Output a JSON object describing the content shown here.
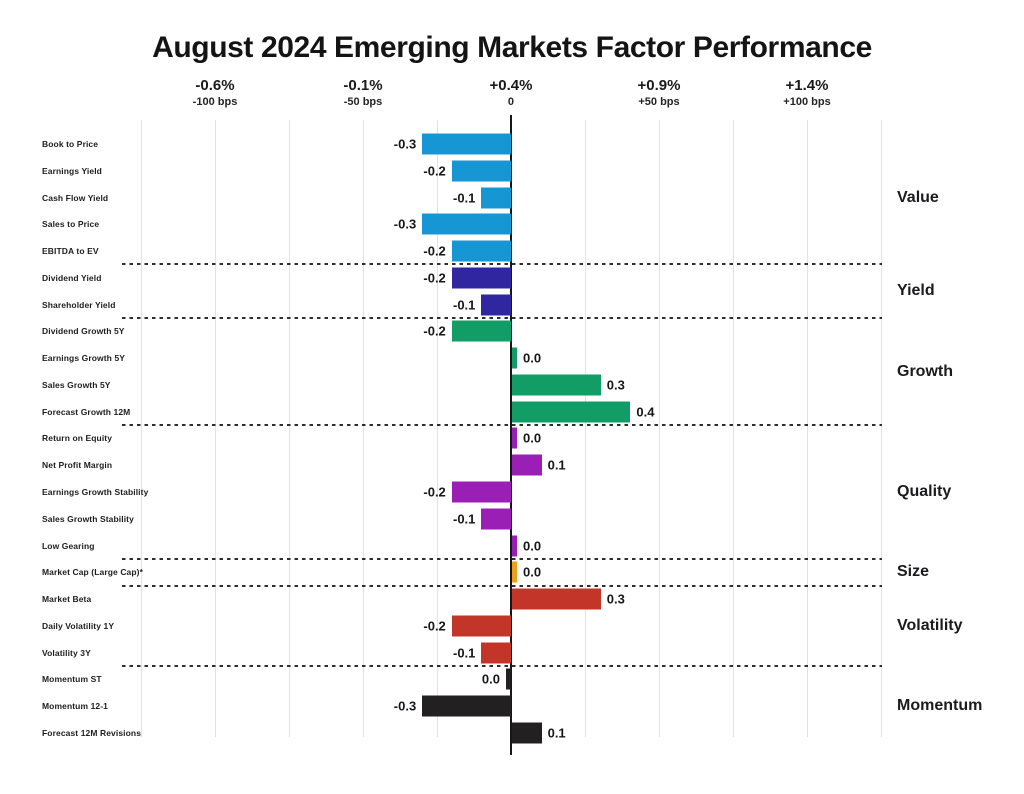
{
  "title": "August 2024 Emerging Markets Factor Performance",
  "chart_data": {
    "type": "bar",
    "orientation": "horizontal",
    "title": "August 2024 Emerging Markets Factor Performance",
    "unit": "percent (100 bps = 1%)",
    "x_axis": {
      "zero_line_at_pct_label": "+0.4%",
      "gridlines": "light vertical every 25 bps",
      "ticks": [
        {
          "pct": "-0.6%",
          "bps": "-100 bps"
        },
        {
          "pct": "-0.1%",
          "bps": "-50 bps"
        },
        {
          "pct": "+0.4%",
          "bps": "0"
        },
        {
          "pct": "+0.9%",
          "bps": "+50 bps"
        },
        {
          "pct": "+1.4%",
          "bps": "+100 bps"
        }
      ]
    },
    "groups": [
      {
        "name": "Value",
        "color": "#1697D4",
        "items": [
          {
            "label": "Book to Price",
            "value": -0.3,
            "display": "-0.3"
          },
          {
            "label": "Earnings Yield",
            "value": -0.2,
            "display": "-0.2"
          },
          {
            "label": "Cash Flow Yield",
            "value": -0.1,
            "display": "-0.1"
          },
          {
            "label": "Sales to Price",
            "value": -0.3,
            "display": "-0.3"
          },
          {
            "label": "EBITDA to EV",
            "value": -0.2,
            "display": "-0.2"
          }
        ]
      },
      {
        "name": "Yield",
        "color": "#2F26A0",
        "items": [
          {
            "label": "Dividend Yield",
            "value": -0.2,
            "display": "-0.2"
          },
          {
            "label": "Shareholder Yield",
            "value": -0.1,
            "display": "-0.1"
          }
        ]
      },
      {
        "name": "Growth",
        "color": "#129C66",
        "items": [
          {
            "label": "Dividend Growth 5Y",
            "value": -0.2,
            "display": "-0.2"
          },
          {
            "label": "Earnings Growth 5Y",
            "value": 0.0,
            "display": "0.0",
            "bar_side": "right"
          },
          {
            "label": "Sales Growth 5Y",
            "value": 0.3,
            "display": "0.3"
          },
          {
            "label": "Forecast Growth 12M",
            "value": 0.4,
            "display": "0.4"
          }
        ]
      },
      {
        "name": "Quality",
        "color": "#9A1FB5",
        "items": [
          {
            "label": "Return on Equity",
            "value": 0.0,
            "display": "0.0",
            "bar_side": "right"
          },
          {
            "label": "Net Profit Margin",
            "value": 0.1,
            "display": "0.1"
          },
          {
            "label": "Earnings Growth Stability",
            "value": -0.2,
            "display": "-0.2"
          },
          {
            "label": "Sales Growth Stability",
            "value": -0.1,
            "display": "-0.1"
          },
          {
            "label": "Low Gearing",
            "value": 0.0,
            "display": "0.0",
            "bar_side": "right"
          }
        ]
      },
      {
        "name": "Size",
        "color": "#F0A11C",
        "items": [
          {
            "label": "Market Cap (Large Cap)*",
            "value": 0.0,
            "display": "0.0",
            "bar_side": "right"
          }
        ]
      },
      {
        "name": "Volatility",
        "color": "#C43529",
        "items": [
          {
            "label": "Market Beta",
            "value": 0.3,
            "display": "0.3"
          },
          {
            "label": "Daily Volatility 1Y",
            "value": -0.2,
            "display": "-0.2"
          },
          {
            "label": "Volatility 3Y",
            "value": -0.1,
            "display": "-0.1"
          }
        ]
      },
      {
        "name": "Momentum",
        "color": "#232021",
        "items": [
          {
            "label": "Momentum ST",
            "value": 0.0,
            "display": "0.0",
            "bar_side": "left"
          },
          {
            "label": "Momentum 12-1",
            "value": -0.3,
            "display": "-0.3"
          },
          {
            "label": "Forecast 12M Revisions",
            "value": 0.1,
            "display": "0.1"
          }
        ]
      }
    ]
  }
}
